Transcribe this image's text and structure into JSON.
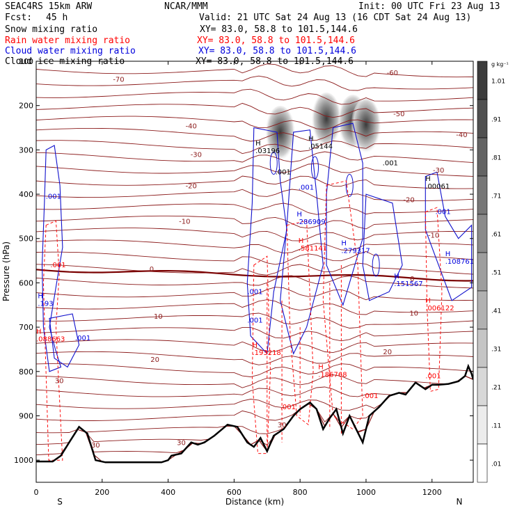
{
  "header": {
    "model": "SEAC4RS 15km ARW",
    "org": "NCAR/MMM",
    "init": "Init: 00 UTC Fri 23 Aug 13",
    "fcst_label": "Fcst:",
    "fcst_value": "45 h",
    "valid": "Valid: 21 UTC Sat 24 Aug 13 (16 CDT Sat 24 Aug 13)"
  },
  "fields": [
    {
      "name": "Snow mixing ratio",
      "xy": "XY=  83.0, 58.8 to 101.5,144.6",
      "color": "#000000"
    },
    {
      "name": "Rain water mixing ratio",
      "xy": "XY=  83.0, 58.8 to 101.5,144.6",
      "color": "#ff0000"
    },
    {
      "name": "Cloud water mixing ratio",
      "xy": "XY=  83.0, 58.8 to 101.5,144.6",
      "color": "#0000dd"
    },
    {
      "name": "Cloud ice mixing ratio",
      "xy": "XY=  83.0, 58.8 to 101.5,144.6",
      "color": "#000000"
    }
  ],
  "chart_data": {
    "type": "heatmap",
    "xlabel": "Distance (km)",
    "ylabel": "Pressure (hPa)",
    "x_ticks": [
      "0",
      "200",
      "400",
      "600",
      "800",
      "1000",
      "1200"
    ],
    "y_ticks": [
      "100",
      "200",
      "300",
      "400",
      "500",
      "600",
      "700",
      "800",
      "900",
      "1000"
    ],
    "xlim": [
      0,
      1325
    ],
    "ylim": [
      1050,
      100
    ],
    "x_direction_labels": {
      "left": "S",
      "right": "N"
    },
    "colorbar": {
      "unit": "g kg⁻¹",
      "ticks": [
        "1.01",
        ".91",
        ".81",
        ".71",
        ".61",
        ".51",
        ".41",
        ".31",
        ".21",
        ".11",
        ".01"
      ]
    },
    "temperature_contours": [
      {
        "label": "-70",
        "x": 250,
        "p": 140
      },
      {
        "label": "-60",
        "x": 1080,
        "p": 125
      },
      {
        "label": "-50",
        "x": 1100,
        "p": 218
      },
      {
        "label": "-40",
        "x": 470,
        "p": 245
      },
      {
        "label": "-40",
        "x": 1290,
        "p": 265
      },
      {
        "label": "-30",
        "x": 485,
        "p": 310
      },
      {
        "label": "-30",
        "x": 1220,
        "p": 345
      },
      {
        "label": "-20",
        "x": 470,
        "p": 380
      },
      {
        "label": "-20",
        "x": 1130,
        "p": 412
      },
      {
        "label": "-10",
        "x": 450,
        "p": 460
      },
      {
        "label": "-10",
        "x": 1205,
        "p": 492
      },
      {
        "label": "0",
        "x": 350,
        "p": 568
      },
      {
        "label": "0",
        "x": 1140,
        "p": 590
      },
      {
        "label": "10",
        "x": 370,
        "p": 675
      },
      {
        "label": "10",
        "x": 1145,
        "p": 668
      },
      {
        "label": "20",
        "x": 360,
        "p": 772
      },
      {
        "label": "20",
        "x": 1065,
        "p": 755
      },
      {
        "label": "30",
        "x": 70,
        "p": 820
      },
      {
        "label": "30",
        "x": 180,
        "p": 965
      },
      {
        "label": "30",
        "x": 440,
        "p": 960
      },
      {
        "label": "30",
        "x": 745,
        "p": 920
      }
    ],
    "maxima_labels": [
      {
        "text": "H\n.03196",
        "x": 665,
        "p": 290,
        "color": "#000000"
      },
      {
        "text": "H\n.05144",
        "x": 825,
        "p": 280,
        "color": "#000000"
      },
      {
        "text": "H\n.00061",
        "x": 1180,
        "p": 370,
        "color": "#000000"
      },
      {
        "text": ".001",
        "x": 725,
        "p": 355,
        "color": "#000000"
      },
      {
        "text": ".001",
        "x": 1050,
        "p": 335,
        "color": "#000000"
      },
      {
        "text": ".001",
        "x": 29,
        "p": 410,
        "color": "#0000dd"
      },
      {
        "text": ".001",
        "x": 795,
        "p": 390,
        "color": "#0000dd"
      },
      {
        "text": "H\n.286909",
        "x": 790,
        "p": 450,
        "color": "#0000dd"
      },
      {
        "text": "H\n.279317",
        "x": 925,
        "p": 515,
        "color": "#0000dd"
      },
      {
        "text": "H\n.151567",
        "x": 1085,
        "p": 590,
        "color": "#0000dd"
      },
      {
        "text": "H\n.108761",
        "x": 1240,
        "p": 540,
        "color": "#0000dd"
      },
      {
        "text": ".001",
        "x": 1210,
        "p": 445,
        "color": "#0000dd"
      },
      {
        "text": "H\n.193",
        "x": 5,
        "p": 635,
        "color": "#0000dd"
      },
      {
        "text": ".001",
        "x": 118,
        "p": 730,
        "color": "#0000dd"
      },
      {
        "text": ".001",
        "x": 640,
        "p": 625,
        "color": "#0000dd"
      },
      {
        "text": ".001",
        "x": 640,
        "p": 690,
        "color": "#0000dd"
      },
      {
        "text": ".001",
        "x": 43,
        "p": 565,
        "color": "#ff0000"
      },
      {
        "text": "H\n.581141",
        "x": 795,
        "p": 510,
        "color": "#ff0000"
      },
      {
        "text": "H\n.088663",
        "x": 0,
        "p": 715,
        "color": "#ff0000"
      },
      {
        "text": "H\n.193218",
        "x": 655,
        "p": 745,
        "color": "#ff0000"
      },
      {
        "text": "H\n.186768",
        "x": 855,
        "p": 795,
        "color": "#ff0000"
      },
      {
        "text": "H\n.006122",
        "x": 1180,
        "p": 645,
        "color": "#ff0000"
      },
      {
        "text": ".001",
        "x": 1180,
        "p": 815,
        "color": "#ff0000"
      },
      {
        "text": ".001",
        "x": 990,
        "p": 860,
        "color": "#ff0000"
      },
      {
        "text": ".001",
        "x": 740,
        "p": 885,
        "color": "#ff0000"
      }
    ],
    "terrain": {
      "x": [
        0,
        25,
        50,
        75,
        100,
        130,
        155,
        180,
        210,
        280,
        300,
        380,
        400,
        410,
        440,
        470,
        490,
        510,
        540,
        580,
        610,
        640,
        660,
        680,
        700,
        720,
        750,
        780,
        800,
        830,
        850,
        870,
        890,
        910,
        930,
        950,
        970,
        990,
        1010,
        1040,
        1070,
        1100,
        1120,
        1150,
        1180,
        1200,
        1220,
        1250,
        1280,
        1300,
        1310,
        1320,
        1325
      ],
      "p": [
        1003,
        1003,
        1003,
        990,
        960,
        925,
        940,
        1000,
        1005,
        1005,
        1005,
        1005,
        1000,
        990,
        985,
        960,
        965,
        960,
        945,
        920,
        925,
        960,
        970,
        950,
        980,
        945,
        930,
        900,
        885,
        870,
        885,
        930,
        905,
        885,
        940,
        900,
        930,
        960,
        900,
        880,
        855,
        848,
        852,
        825,
        840,
        830,
        830,
        828,
        822,
        810,
        788,
        805,
        818
      ]
    },
    "snow_maxima": [
      {
        "x": 740,
        "p": 235
      },
      {
        "x": 880,
        "p": 205
      },
      {
        "x": 960,
        "p": 210
      },
      {
        "x": 1000,
        "p": 218
      }
    ]
  }
}
